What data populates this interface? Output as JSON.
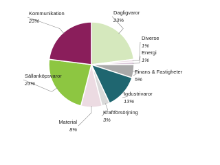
{
  "chart_data": {
    "type": "pie",
    "categories": [
      "Dagligvaror",
      "Diverse",
      "Energi",
      "Finans & Fastigheter",
      "Industrivaror",
      "Kraftförsörjning",
      "Material",
      "Sällanköpsvaror",
      "Kommunikation"
    ],
    "values": [
      23,
      1,
      1,
      5,
      13,
      3,
      8,
      23,
      23
    ],
    "value_labels": [
      "23%",
      "1%",
      "1%",
      "5%",
      "13%",
      "3%",
      "8%",
      "23%",
      "23%"
    ],
    "colors": [
      "#d5e8bd",
      "#efe3ea",
      "#d9c7d8",
      "#a9a9a9",
      "#1f6670",
      "#d9d9d9",
      "#ecdbe2",
      "#8dc641",
      "#8a1e5b"
    ]
  }
}
